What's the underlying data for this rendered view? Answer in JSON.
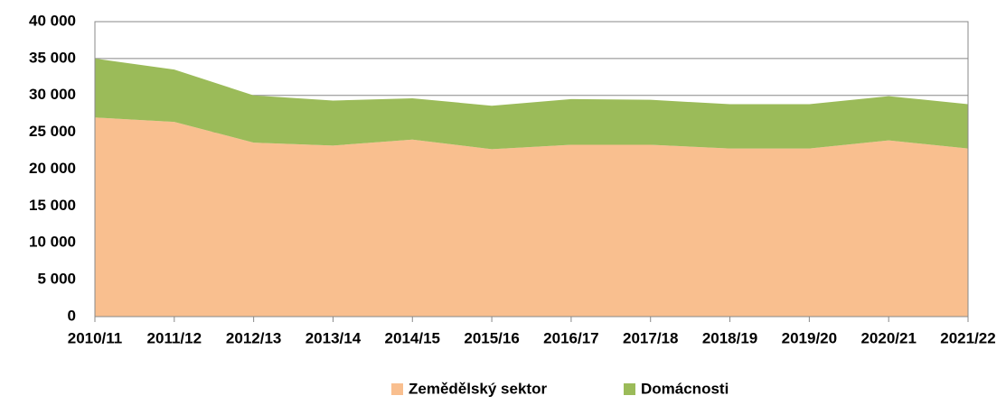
{
  "chart_data": {
    "type": "stacked_area",
    "categories": [
      "2010/11",
      "2011/12",
      "2012/13",
      "2013/14",
      "2014/15",
      "2015/16",
      "2016/17",
      "2017/18",
      "2018/19",
      "2019/20",
      "2020/21",
      "2021/22"
    ],
    "series": [
      {
        "name": "Zemědělský sektor",
        "color": "#f9bf8f",
        "values": [
          27000,
          26400,
          23600,
          23200,
          24000,
          22700,
          23300,
          23300,
          22800,
          22800,
          23900,
          22800
        ]
      },
      {
        "name": "Domácnosti",
        "color": "#9bbb59",
        "values": [
          8000,
          7100,
          6400,
          6100,
          5600,
          5900,
          6200,
          6100,
          6000,
          6000,
          6000,
          6000
        ]
      }
    ],
    "ylim": [
      0,
      40000
    ],
    "yticks": [
      0,
      {
        "value": 5000,
        "label": "5 000"
      },
      {
        "value": 10000,
        "label": "10 000"
      },
      {
        "value": 15000,
        "label": "15 000"
      },
      {
        "value": 20000,
        "label": "20 000"
      },
      {
        "value": 25000,
        "label": "25 000"
      },
      {
        "value": 30000,
        "label": "30 000"
      },
      {
        "value": 35000,
        "label": "35 000"
      },
      {
        "value": 40000,
        "label": "40 000"
      }
    ],
    "grid": true,
    "legend": "bottom"
  }
}
